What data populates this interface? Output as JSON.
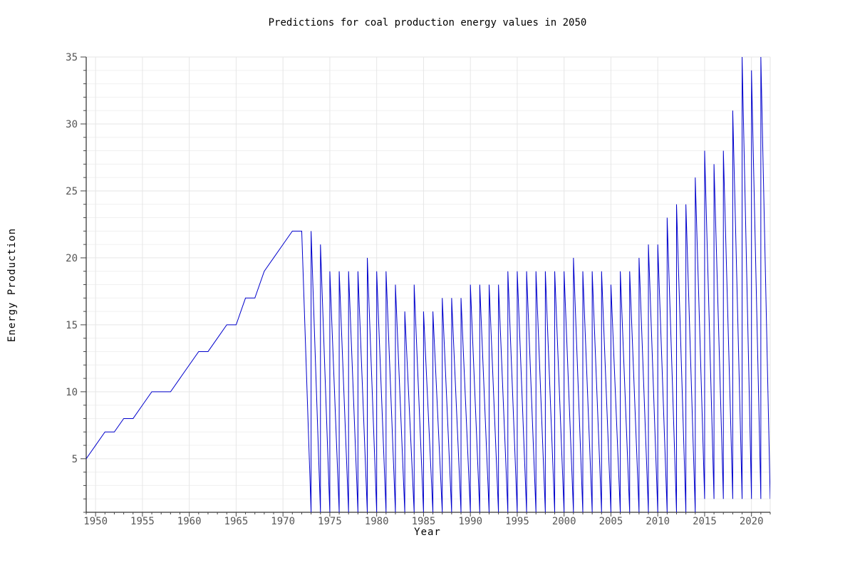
{
  "chart_data": {
    "type": "line",
    "title": "Predictions for coal production energy values in 2050",
    "xlabel": "Year",
    "ylabel": "Energy Production",
    "xlim": [
      1949,
      2022
    ],
    "ylim": [
      1,
      35
    ],
    "xticks": [
      1950,
      1955,
      1960,
      1965,
      1970,
      1975,
      1980,
      1985,
      1990,
      1995,
      2000,
      2005,
      2010,
      2015,
      2020
    ],
    "yticks": [
      5,
      10,
      15,
      20,
      25,
      30,
      35
    ],
    "grid": true,
    "legend": "none",
    "series": [
      {
        "color": "#0000cc",
        "points": [
          [
            1949,
            5
          ],
          [
            1950,
            6
          ],
          [
            1951,
            7
          ],
          [
            1952,
            7
          ],
          [
            1953,
            8
          ],
          [
            1954,
            8
          ],
          [
            1955,
            9
          ],
          [
            1956,
            10
          ],
          [
            1957,
            10
          ],
          [
            1958,
            10
          ],
          [
            1959,
            11
          ],
          [
            1960,
            12
          ],
          [
            1961,
            13
          ],
          [
            1962,
            13
          ],
          [
            1963,
            14
          ],
          [
            1964,
            15
          ],
          [
            1965,
            15
          ],
          [
            1966,
            17
          ],
          [
            1967,
            17
          ],
          [
            1968,
            19
          ],
          [
            1969,
            20
          ],
          [
            1970,
            21
          ],
          [
            1971,
            22
          ],
          [
            1972,
            22
          ],
          [
            1973,
            1
          ],
          [
            1973,
            22
          ],
          [
            1974,
            1
          ],
          [
            1974,
            21
          ],
          [
            1975,
            1
          ],
          [
            1975,
            19
          ],
          [
            1976,
            1
          ],
          [
            1976,
            19
          ],
          [
            1977,
            1
          ],
          [
            1977,
            19
          ],
          [
            1978,
            1
          ],
          [
            1978,
            19
          ],
          [
            1979,
            1
          ],
          [
            1979,
            20
          ],
          [
            1980,
            1
          ],
          [
            1980,
            19
          ],
          [
            1981,
            1
          ],
          [
            1981,
            19
          ],
          [
            1982,
            1
          ],
          [
            1982,
            18
          ],
          [
            1983,
            1
          ],
          [
            1983,
            16
          ],
          [
            1984,
            1
          ],
          [
            1984,
            18
          ],
          [
            1985,
            1
          ],
          [
            1985,
            16
          ],
          [
            1986,
            1
          ],
          [
            1986,
            16
          ],
          [
            1987,
            1
          ],
          [
            1987,
            17
          ],
          [
            1988,
            1
          ],
          [
            1988,
            17
          ],
          [
            1989,
            1
          ],
          [
            1989,
            17
          ],
          [
            1990,
            1
          ],
          [
            1990,
            18
          ],
          [
            1991,
            1
          ],
          [
            1991,
            18
          ],
          [
            1992,
            1
          ],
          [
            1992,
            18
          ],
          [
            1993,
            1
          ],
          [
            1993,
            18
          ],
          [
            1994,
            1
          ],
          [
            1994,
            19
          ],
          [
            1995,
            1
          ],
          [
            1995,
            19
          ],
          [
            1996,
            1
          ],
          [
            1996,
            19
          ],
          [
            1997,
            1
          ],
          [
            1997,
            19
          ],
          [
            1998,
            1
          ],
          [
            1998,
            19
          ],
          [
            1999,
            1
          ],
          [
            1999,
            19
          ],
          [
            2000,
            1
          ],
          [
            2000,
            19
          ],
          [
            2001,
            1
          ],
          [
            2001,
            20
          ],
          [
            2002,
            1
          ],
          [
            2002,
            19
          ],
          [
            2003,
            1
          ],
          [
            2003,
            19
          ],
          [
            2004,
            1
          ],
          [
            2004,
            19
          ],
          [
            2005,
            1
          ],
          [
            2005,
            18
          ],
          [
            2006,
            1
          ],
          [
            2006,
            19
          ],
          [
            2007,
            1
          ],
          [
            2007,
            19
          ],
          [
            2008,
            1
          ],
          [
            2008,
            20
          ],
          [
            2009,
            1
          ],
          [
            2009,
            21
          ],
          [
            2010,
            1
          ],
          [
            2010,
            21
          ],
          [
            2011,
            1
          ],
          [
            2011,
            23
          ],
          [
            2012,
            1
          ],
          [
            2012,
            24
          ],
          [
            2013,
            1
          ],
          [
            2013,
            24
          ],
          [
            2014,
            1
          ],
          [
            2014,
            26
          ],
          [
            2015,
            2
          ],
          [
            2015,
            28
          ],
          [
            2016,
            2
          ],
          [
            2016,
            27
          ],
          [
            2017,
            2
          ],
          [
            2017,
            28
          ],
          [
            2018,
            2
          ],
          [
            2018,
            31
          ],
          [
            2019,
            2
          ],
          [
            2019,
            35
          ],
          [
            2020,
            2
          ],
          [
            2020,
            34
          ],
          [
            2021,
            2
          ],
          [
            2021,
            35
          ],
          [
            2022,
            2
          ]
        ]
      }
    ]
  }
}
